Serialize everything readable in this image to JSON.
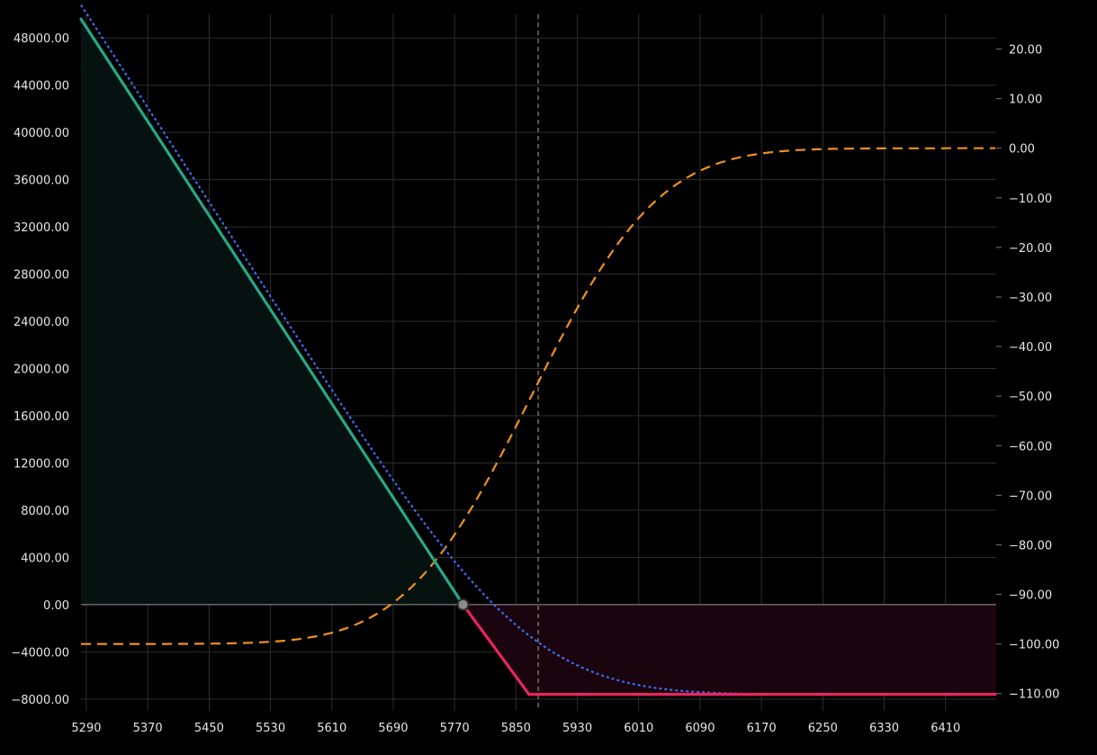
{
  "chart_data": {
    "type": "line",
    "x_ticks": [
      5290,
      5370,
      5450,
      5530,
      5610,
      5690,
      5770,
      5850,
      5930,
      6010,
      6090,
      6170,
      6250,
      6330,
      6410
    ],
    "xlim": [
      5283,
      6476
    ],
    "y_left_ticks": [
      "48000.00",
      "44000.00",
      "40000.00",
      "36000.00",
      "32000.00",
      "28000.00",
      "24000.00",
      "20000.00",
      "16000.00",
      "12000.00",
      "8000.00",
      "4000.00",
      "0.00",
      "-4000.00",
      "-8000.00"
    ],
    "y_left_values": [
      48000,
      44000,
      40000,
      36000,
      32000,
      28000,
      24000,
      20000,
      16000,
      12000,
      8000,
      4000,
      0,
      -4000,
      -8000
    ],
    "ylim_left": [
      -9000,
      50000
    ],
    "y_right_ticks": [
      "20.00",
      "10.00",
      "0.00",
      "-10.00",
      "-20.00",
      "-30.00",
      "-40.00",
      "-50.00",
      "-60.00",
      "-70.00",
      "-80.00",
      "-90.00",
      "-100.00",
      "-110.00"
    ],
    "y_right_values": [
      20,
      10,
      0,
      -10,
      -20,
      -30,
      -40,
      -50,
      -60,
      -70,
      -80,
      -90,
      -100,
      -110
    ],
    "ylim_right": [
      -113.5,
      27
    ],
    "current_price": 5879,
    "breakeven": 5781,
    "payoff_at_expiry": [
      {
        "x": 5283,
        "y": 49600
      },
      {
        "x": 5781,
        "y": 0
      },
      {
        "x": 5867,
        "y": -7600
      },
      {
        "x": 6476,
        "y": -7600
      }
    ],
    "pnl_today_curve": {
      "strike": 5867,
      "sigma": 125,
      "max_profit_slope": 100,
      "loss": -7600
    },
    "delta_curve": {
      "min": -100,
      "max": 0,
      "center": 5870,
      "sigma": 130
    },
    "colors": {
      "profit": "#26a889",
      "loss": "#e8245f",
      "profit_fill": "#06120f",
      "loss_fill": "#1a040e",
      "today": "#3a6cf0",
      "delta": "#f0901e",
      "grid": "#2e2e2e",
      "zero_line": "#9a9a9a",
      "current_price_line": "#8a8a8a",
      "marker": "#8c8c8c"
    }
  }
}
